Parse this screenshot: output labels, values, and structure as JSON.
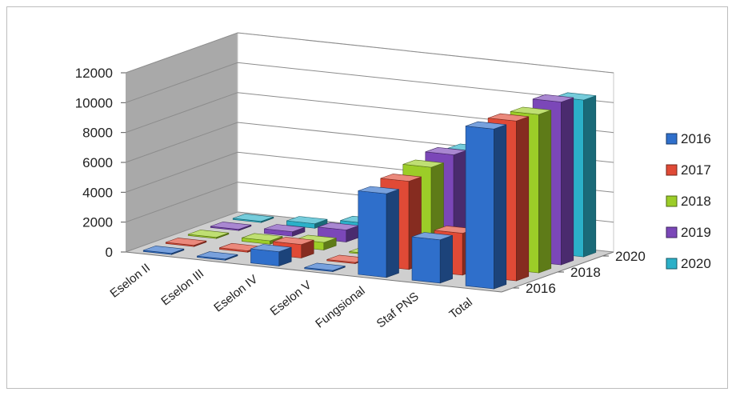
{
  "chart_data": {
    "type": "bar",
    "subtype": "3d-column",
    "categories": [
      "Eselon II",
      "Eselon III",
      "Eselon IV",
      "Eselon V",
      "Fungsional",
      "Staf PNS",
      "Total"
    ],
    "series": [
      {
        "name": "2016",
        "color": "#2f6fcb",
        "values": [
          30,
          70,
          950,
          10,
          5600,
          2900,
          10700
        ]
      },
      {
        "name": "2017",
        "color": "#e04a36",
        "values": [
          30,
          100,
          900,
          10,
          5900,
          2800,
          10700
        ]
      },
      {
        "name": "2018",
        "color": "#9ccd28",
        "values": [
          60,
          230,
          500,
          10,
          6300,
          1600,
          10600
        ]
      },
      {
        "name": "2019",
        "color": "#7b47b8",
        "values": [
          40,
          300,
          800,
          10,
          6600,
          1000,
          10900
        ]
      },
      {
        "name": "2020",
        "color": "#2bb0c8",
        "values": [
          40,
          300,
          700,
          10,
          6300,
          1000,
          10500
        ]
      }
    ],
    "y_ticks": [
      "0",
      "2000",
      "4000",
      "6000",
      "8000",
      "10000",
      "12000"
    ],
    "depth_ticks": [
      "2016",
      "2018",
      "2020"
    ],
    "ylim": [
      0,
      12000
    ],
    "grid": true,
    "legend_position": "right"
  }
}
